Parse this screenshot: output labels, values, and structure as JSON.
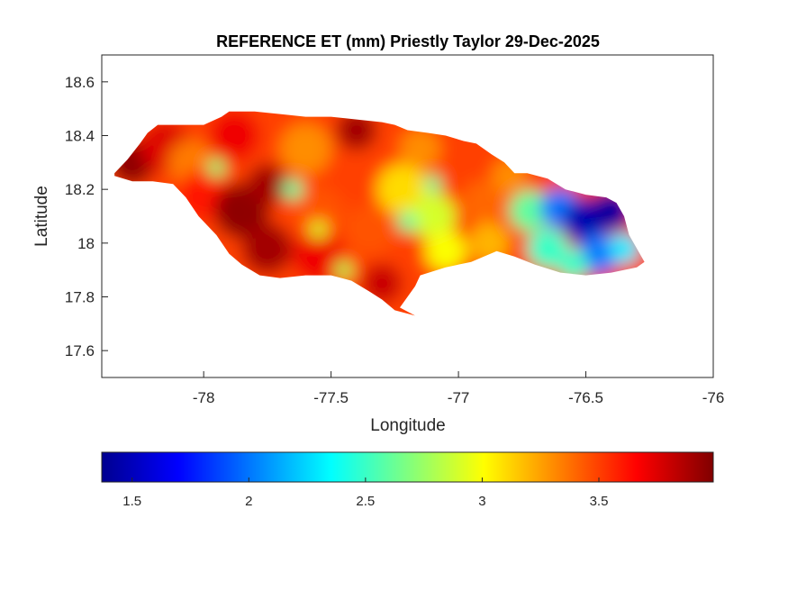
{
  "chart_data": {
    "type": "heatmap",
    "title": "REFERENCE ET (mm) Priestly Taylor 29-Dec-2025",
    "xlabel": "Longitude",
    "ylabel": "Latitude",
    "xlim": [
      -78.4,
      -76
    ],
    "ylim": [
      17.5,
      18.7
    ],
    "x_ticks": [
      "-78",
      "-77.5",
      "-77",
      "-76.5",
      "-76"
    ],
    "y_ticks": [
      "17.6",
      "17.8",
      "18",
      "18.2",
      "18.4",
      "18.6"
    ],
    "colormap": "jet",
    "colorbar": {
      "orientation": "horizontal",
      "placement": "bottom",
      "range": [
        1.37,
        3.99
      ],
      "ticks": [
        "1.5",
        "2",
        "2.5",
        "3",
        "3.5"
      ]
    },
    "region": "Jamaica",
    "outline": [
      [
        -78.35,
        18.26
      ],
      [
        -78.3,
        18.31
      ],
      [
        -78.25,
        18.37
      ],
      [
        -78.22,
        18.41
      ],
      [
        -78.18,
        18.44
      ],
      [
        -78.1,
        18.44
      ],
      [
        -78.0,
        18.44
      ],
      [
        -77.93,
        18.47
      ],
      [
        -77.9,
        18.49
      ],
      [
        -77.8,
        18.49
      ],
      [
        -77.7,
        18.48
      ],
      [
        -77.6,
        18.47
      ],
      [
        -77.5,
        18.47
      ],
      [
        -77.4,
        18.46
      ],
      [
        -77.3,
        18.45
      ],
      [
        -77.25,
        18.44
      ],
      [
        -77.2,
        18.42
      ],
      [
        -77.12,
        18.41
      ],
      [
        -77.05,
        18.4
      ],
      [
        -76.98,
        18.38
      ],
      [
        -76.93,
        18.37
      ],
      [
        -76.87,
        18.33
      ],
      [
        -76.82,
        18.3
      ],
      [
        -76.78,
        18.26
      ],
      [
        -76.73,
        18.26
      ],
      [
        -76.65,
        18.24
      ],
      [
        -76.58,
        18.2
      ],
      [
        -76.5,
        18.18
      ],
      [
        -76.42,
        18.17
      ],
      [
        -76.38,
        18.15
      ],
      [
        -76.35,
        18.1
      ],
      [
        -76.33,
        18.03
      ],
      [
        -76.3,
        17.98
      ],
      [
        -76.27,
        17.93
      ],
      [
        -76.3,
        17.91
      ],
      [
        -76.4,
        17.89
      ],
      [
        -76.5,
        17.88
      ],
      [
        -76.6,
        17.89
      ],
      [
        -76.7,
        17.92
      ],
      [
        -76.78,
        17.95
      ],
      [
        -76.85,
        17.97
      ],
      [
        -76.95,
        17.93
      ],
      [
        -77.05,
        17.91
      ],
      [
        -77.15,
        17.88
      ],
      [
        -77.17,
        17.84
      ],
      [
        -77.2,
        17.8
      ],
      [
        -77.23,
        17.76
      ],
      [
        -77.17,
        17.73
      ],
      [
        -77.25,
        17.75
      ],
      [
        -77.3,
        17.79
      ],
      [
        -77.35,
        17.82
      ],
      [
        -77.42,
        17.86
      ],
      [
        -77.5,
        17.88
      ],
      [
        -77.6,
        17.88
      ],
      [
        -77.7,
        17.87
      ],
      [
        -77.78,
        17.88
      ],
      [
        -77.85,
        17.92
      ],
      [
        -77.9,
        17.96
      ],
      [
        -77.95,
        18.03
      ],
      [
        -78.02,
        18.1
      ],
      [
        -78.07,
        18.17
      ],
      [
        -78.12,
        18.22
      ],
      [
        -78.2,
        18.23
      ],
      [
        -78.28,
        18.23
      ],
      [
        -78.35,
        18.25
      ]
    ],
    "value_field": [
      {
        "lon": -78.28,
        "lat": 18.3,
        "value": 3.95,
        "r": 0.09
      },
      {
        "lon": -78.15,
        "lat": 18.36,
        "value": 3.75,
        "r": 0.1
      },
      {
        "lon": -78.05,
        "lat": 18.3,
        "value": 3.35,
        "r": 0.09
      },
      {
        "lon": -78.0,
        "lat": 18.18,
        "value": 3.6,
        "r": 0.1
      },
      {
        "lon": -77.88,
        "lat": 18.4,
        "value": 3.7,
        "r": 0.1
      },
      {
        "lon": -77.85,
        "lat": 18.12,
        "value": 3.95,
        "r": 0.11
      },
      {
        "lon": -77.75,
        "lat": 17.98,
        "value": 3.9,
        "r": 0.1
      },
      {
        "lon": -77.75,
        "lat": 18.22,
        "value": 3.9,
        "r": 0.08
      },
      {
        "lon": -77.6,
        "lat": 18.35,
        "value": 3.3,
        "r": 0.1
      },
      {
        "lon": -77.55,
        "lat": 18.12,
        "value": 3.45,
        "r": 0.1
      },
      {
        "lon": -77.55,
        "lat": 17.95,
        "value": 3.7,
        "r": 0.1
      },
      {
        "lon": -77.45,
        "lat": 18.25,
        "value": 3.5,
        "r": 0.08
      },
      {
        "lon": -77.4,
        "lat": 18.42,
        "value": 3.9,
        "r": 0.08
      },
      {
        "lon": -77.35,
        "lat": 18.05,
        "value": 3.45,
        "r": 0.1
      },
      {
        "lon": -77.3,
        "lat": 17.85,
        "value": 3.8,
        "r": 0.08
      },
      {
        "lon": -77.22,
        "lat": 18.2,
        "value": 3.1,
        "r": 0.1
      },
      {
        "lon": -77.15,
        "lat": 18.35,
        "value": 3.3,
        "r": 0.08
      },
      {
        "lon": -77.1,
        "lat": 18.1,
        "value": 2.9,
        "r": 0.09
      },
      {
        "lon": -77.05,
        "lat": 17.97,
        "value": 3.0,
        "r": 0.08
      },
      {
        "lon": -77.0,
        "lat": 18.3,
        "value": 3.5,
        "r": 0.08
      },
      {
        "lon": -76.9,
        "lat": 18.15,
        "value": 3.4,
        "r": 0.09
      },
      {
        "lon": -76.88,
        "lat": 18.0,
        "value": 3.2,
        "r": 0.08
      },
      {
        "lon": -76.8,
        "lat": 18.25,
        "value": 3.3,
        "r": 0.07
      },
      {
        "lon": -76.72,
        "lat": 18.12,
        "value": 2.6,
        "r": 0.08
      },
      {
        "lon": -76.65,
        "lat": 17.98,
        "value": 2.5,
        "r": 0.08
      },
      {
        "lon": -76.6,
        "lat": 18.13,
        "value": 2.0,
        "r": 0.08
      },
      {
        "lon": -76.5,
        "lat": 18.08,
        "value": 1.5,
        "r": 0.09
      },
      {
        "lon": -76.45,
        "lat": 17.96,
        "value": 2.0,
        "r": 0.08
      },
      {
        "lon": -76.4,
        "lat": 18.12,
        "value": 1.45,
        "r": 0.08
      },
      {
        "lon": -76.35,
        "lat": 17.98,
        "value": 2.3,
        "r": 0.06
      },
      {
        "lon": -76.55,
        "lat": 17.92,
        "value": 2.5,
        "r": 0.06
      },
      {
        "lon": -77.65,
        "lat": 18.2,
        "value": 2.6,
        "r": 0.04
      },
      {
        "lon": -77.95,
        "lat": 18.28,
        "value": 2.7,
        "r": 0.035
      },
      {
        "lon": -77.45,
        "lat": 17.9,
        "value": 2.8,
        "r": 0.035
      },
      {
        "lon": -77.2,
        "lat": 18.08,
        "value": 2.6,
        "r": 0.04
      },
      {
        "lon": -77.1,
        "lat": 18.22,
        "value": 2.6,
        "r": 0.035
      },
      {
        "lon": -77.55,
        "lat": 18.05,
        "value": 2.9,
        "r": 0.035
      }
    ]
  }
}
